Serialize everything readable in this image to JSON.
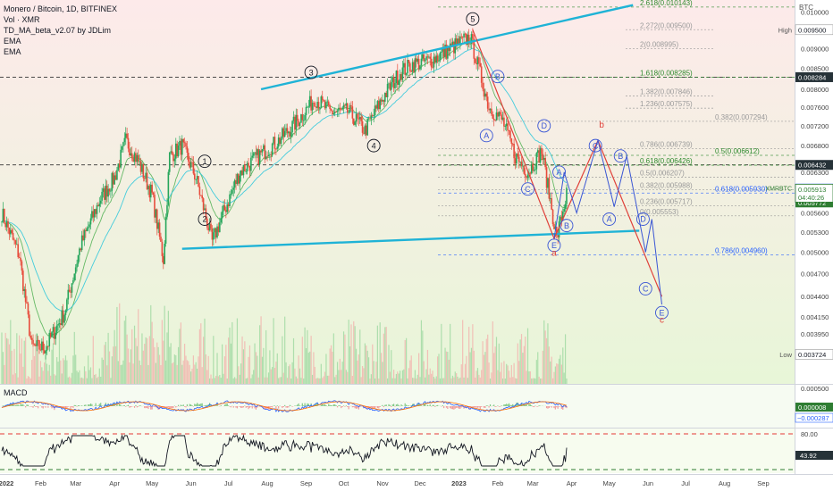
{
  "header": {
    "title": "Monero / Bitcoin, 1D, BITFINEX",
    "indicators": [
      "Vol · XMR",
      "TD_MA_beta_v2.07 by JDLim",
      "EMA",
      "EMA"
    ],
    "currency": "BTC"
  },
  "colors": {
    "background_top": "#fdeaea",
    "background_bottom": "#e8f6d8",
    "up": "#26a65b",
    "down": "#e74c3c",
    "trendline": "#1fb3d6",
    "wave_red": "#e0413a",
    "wave_blue": "#3a56d4",
    "fib_green": "#2e8b2e",
    "fib_gray": "#9a9a9a",
    "fib_blue": "#2962ff",
    "price_tag": "#2e7d32"
  },
  "chart_data": {
    "type": "candlestick",
    "symbol": "XMRBTC",
    "exchange": "BITFINEX",
    "timeframe": "1D",
    "ylim": [
      0.00342,
      0.01035
    ],
    "y_ticks": [
      0.0037,
      0.00395,
      0.00415,
      0.0044,
      0.0047,
      0.005,
      0.0053,
      0.0056,
      0.00595,
      0.0063,
      0.0068,
      0.0072,
      0.0076,
      0.008,
      0.0085,
      0.009,
      0.0095,
      0.01
    ],
    "x_ticks": [
      "2022",
      "Feb",
      "Mar",
      "Apr",
      "May",
      "Jun",
      "Jul",
      "Aug",
      "Sep",
      "Oct",
      "Nov",
      "Dec",
      "2023",
      "Feb",
      "Mar",
      "Apr",
      "May",
      "Jun",
      "Jul",
      "Aug",
      "Sep"
    ],
    "axis_labels": {
      "y_ticks_text": [
        "0.003700",
        "0.003950",
        "0.004150",
        "0.004400",
        "0.004700",
        "0.005000",
        "0.005300",
        "0.005600",
        "0.005950",
        "0.006300",
        "0.006800",
        "0.007200",
        "0.007600",
        "0.008000",
        "0.008500",
        "0.009000",
        "0.009500",
        "0.010000"
      ],
      "currency": "BTC"
    },
    "close_path": [
      [
        "2022-01-01",
        0.0056
      ],
      [
        "2022-01-15",
        0.00495
      ],
      [
        "2022-01-25",
        0.0038
      ],
      [
        "2022-02-05",
        0.0038
      ],
      [
        "2022-02-20",
        0.0042
      ],
      [
        "2022-03-05",
        0.0051
      ],
      [
        "2022-03-20",
        0.0058
      ],
      [
        "2022-04-01",
        0.0062
      ],
      [
        "2022-04-10",
        0.0069
      ],
      [
        "2022-04-20",
        0.0065
      ],
      [
        "2022-05-01",
        0.0059
      ],
      [
        "2022-05-10",
        0.0049
      ],
      [
        "2022-05-15",
        0.0066
      ],
      [
        "2022-05-25",
        0.0068
      ],
      [
        "2022-06-05",
        0.0062
      ],
      [
        "2022-06-18",
        0.00515
      ],
      [
        "2022-06-25",
        0.0055
      ],
      [
        "2022-07-10",
        0.0063
      ],
      [
        "2022-07-25",
        0.0066
      ],
      [
        "2022-08-10",
        0.0069
      ],
      [
        "2022-08-25",
        0.0073
      ],
      [
        "2022-09-08",
        0.0078
      ],
      [
        "2022-09-20",
        0.0075
      ],
      [
        "2022-10-05",
        0.0075
      ],
      [
        "2022-10-18",
        0.0071
      ],
      [
        "2022-11-01",
        0.0078
      ],
      [
        "2022-11-15",
        0.0084
      ],
      [
        "2022-11-25",
        0.0086
      ],
      [
        "2022-12-10",
        0.0087
      ],
      [
        "2022-12-25",
        0.009
      ],
      [
        "2023-01-10",
        0.0093
      ],
      [
        "2023-01-15",
        0.0087
      ],
      [
        "2023-01-25",
        0.0076
      ],
      [
        "2023-02-05",
        0.0073
      ],
      [
        "2023-02-15",
        0.0066
      ],
      [
        "2023-02-25",
        0.0063
      ],
      [
        "2023-03-08",
        0.0067
      ],
      [
        "2023-03-15",
        0.0058
      ],
      [
        "2023-03-20",
        0.0052
      ],
      [
        "2023-03-28",
        0.00591
      ]
    ],
    "last_price": "0.005913",
    "price_label": "XMRBTC",
    "countdown": "04:40:26",
    "price_tags": [
      {
        "label": "High",
        "value": "0.009500"
      },
      {
        "label": "",
        "value": "0.008284"
      },
      {
        "label": "",
        "value": "0.006432"
      },
      {
        "label": "",
        "value": "0.006002"
      },
      {
        "label": "",
        "value": "0.005772"
      },
      {
        "label": "Low",
        "value": "0.003724"
      }
    ],
    "horizontal_lines": [
      0.008284,
      0.006432
    ],
    "trendlines": [
      {
        "from": [
          "2022-07-27",
          0.008
        ],
        "to": [
          "2023-05-20",
          0.0102
        ]
      },
      {
        "from": [
          "2022-05-25",
          0.00505
        ],
        "to": [
          "2023-05-25",
          0.00532
        ]
      }
    ],
    "fib_levels": [
      {
        "text": "2.618(0.010143)",
        "value": 0.010143,
        "color": "green"
      },
      {
        "text": "2.272(0.009500)",
        "value": 0.0095,
        "color": "gray"
      },
      {
        "text": "2(0.008995)",
        "value": 0.008995,
        "color": "gray"
      },
      {
        "text": "1.618(0.008285)",
        "value": 0.008285,
        "color": "green"
      },
      {
        "text": "1.382(0.007846)",
        "value": 0.007846,
        "color": "gray"
      },
      {
        "text": "1.236(0.007575)",
        "value": 0.007575,
        "color": "gray"
      },
      {
        "text": "0.382(0.007294)",
        "value": 0.007294,
        "color": "gray"
      },
      {
        "text": "0.786(0.006739)",
        "value": 0.006739,
        "color": "gray"
      },
      {
        "text": "0.5(0.006612)",
        "value": 0.006612,
        "color": "green"
      },
      {
        "text": "0.618(0.006426)",
        "value": 0.006426,
        "color": "green"
      },
      {
        "text": "0.5(0.006207)",
        "value": 0.006207,
        "color": "gray"
      },
      {
        "text": "0.382(0.005988)",
        "value": 0.005988,
        "color": "gray"
      },
      {
        "text": "0.618(0.005930)",
        "value": 0.00593,
        "color": "blue"
      },
      {
        "text": "0.236(0.005717)",
        "value": 0.005717,
        "color": "gray"
      },
      {
        "text": "0(0.005553)",
        "value": 0.005553,
        "color": "gray"
      },
      {
        "text": "0.786(0.004960)",
        "value": 0.00496,
        "color": "blue"
      }
    ],
    "wave_labels": [
      {
        "text": "1",
        "style": "black",
        "at": [
          "2022-06-12",
          0.0065
        ]
      },
      {
        "text": "2",
        "style": "black",
        "at": [
          "2022-06-12",
          0.0055
        ]
      },
      {
        "text": "3",
        "style": "black",
        "at": [
          "2022-09-05",
          0.0084
        ]
      },
      {
        "text": "4",
        "style": "black",
        "at": [
          "2022-10-25",
          0.0068
        ]
      },
      {
        "text": "5",
        "style": "black",
        "at": [
          "2023-01-12",
          0.0098
        ]
      },
      {
        "text": "A",
        "style": "blue",
        "at": [
          "2023-01-23",
          0.007
        ]
      },
      {
        "text": "B",
        "style": "blue",
        "at": [
          "2023-02-01",
          0.0083
        ]
      },
      {
        "text": "C",
        "style": "blue",
        "at": [
          "2023-02-25",
          0.006
        ]
      },
      {
        "text": "D",
        "style": "blue",
        "at": [
          "2023-03-10",
          0.0072
        ]
      },
      {
        "text": "E",
        "style": "blue",
        "at": [
          "2023-03-18",
          0.0051
        ]
      },
      {
        "text": "A",
        "style": "blue",
        "at": [
          "2023-03-22",
          0.0063
        ]
      },
      {
        "text": "B",
        "style": "blue",
        "at": [
          "2023-03-28",
          0.0054
        ]
      },
      {
        "text": "C",
        "style": "blue",
        "at": [
          "2023-04-20",
          0.0068
        ]
      },
      {
        "text": "A",
        "style": "blue",
        "at": [
          "2023-05-01",
          0.0055
        ]
      },
      {
        "text": "B",
        "style": "blue",
        "at": [
          "2023-05-10",
          0.0066
        ]
      },
      {
        "text": "D",
        "style": "blue",
        "at": [
          "2023-05-28",
          0.0055
        ]
      },
      {
        "text": "C",
        "style": "blue",
        "at": [
          "2023-05-30",
          0.0045
        ]
      },
      {
        "text": "E",
        "style": "blue",
        "at": [
          "2023-06-12",
          0.0042
        ]
      }
    ],
    "wave_letters": [
      {
        "text": "a",
        "at": [
          "2023-03-18",
          0.00495
        ]
      },
      {
        "text": "b",
        "at": [
          "2023-04-25",
          0.00716
        ]
      },
      {
        "text": "c",
        "at": [
          "2023-06-12",
          0.00408
        ]
      }
    ],
    "projection_red": [
      [
        "2023-01-12",
        0.0095
      ],
      [
        "2023-03-18",
        0.0052
      ],
      [
        "2023-04-22",
        0.0069
      ],
      [
        "2023-06-12",
        0.0044
      ]
    ],
    "projection_blue": [
      [
        "2023-03-18",
        0.0052
      ],
      [
        "2023-03-26",
        0.0063
      ],
      [
        "2023-04-05",
        0.0056
      ],
      [
        "2023-04-22",
        0.0069
      ],
      [
        "2023-05-05",
        0.0057
      ],
      [
        "2023-05-15",
        0.0066
      ],
      [
        "2023-05-30",
        0.005
      ],
      [
        "2023-06-04",
        0.0055
      ],
      [
        "2023-06-12",
        0.0043
      ]
    ],
    "macd": {
      "title": "MACD",
      "y_ticks_text": [
        "0.000500"
      ],
      "tags": [
        "0.000008",
        "−0.000287"
      ]
    },
    "rsi": {
      "y_ticks_text": [
        "80.00"
      ],
      "tag": "43.92"
    }
  }
}
